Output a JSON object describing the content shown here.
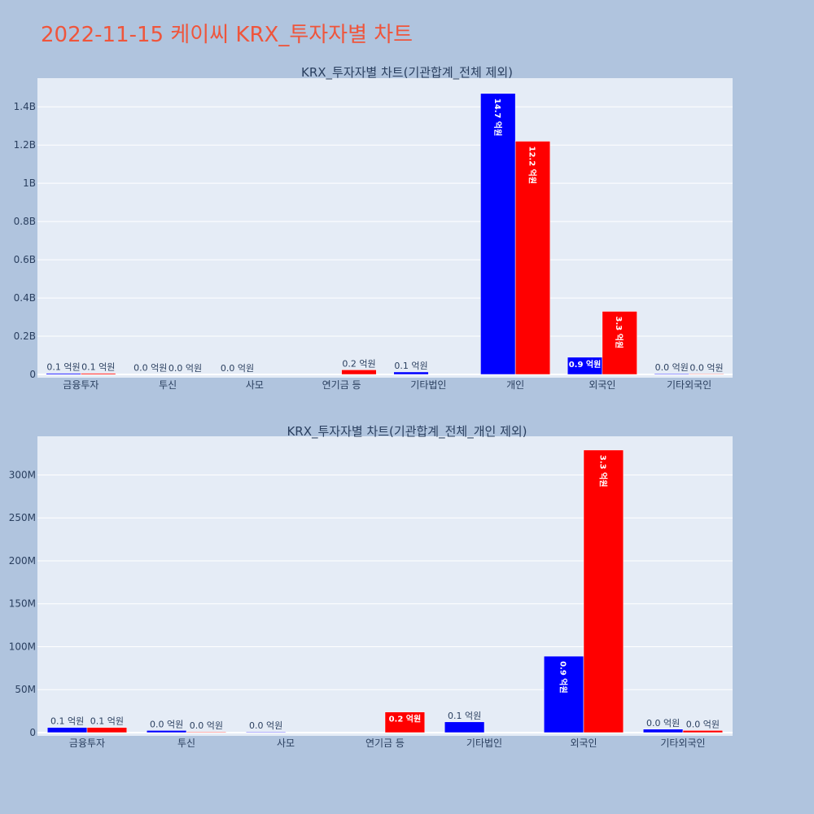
{
  "title": "2022-11-15 케이씨 KRX_투자자별 차트",
  "colors": {
    "background": "#b0c4de",
    "plot_bg": "#e5ecf6",
    "title": "#ef553b",
    "buy": "#0000ff",
    "sell": "#ff0000"
  },
  "chart_data": [
    {
      "type": "bar",
      "title": "KRX_투자자별 차트(기관합계_전체 제외)",
      "categories": [
        "금융투자",
        "투신",
        "사모",
        "연기금 등",
        "기타법인",
        "개인",
        "외국인",
        "기타외국인"
      ],
      "series": [
        {
          "color": "#0000ff",
          "values": [
            6000000,
            2000000,
            1000000,
            0,
            13000000,
            1470000000,
            90000000,
            4000000
          ],
          "labels": [
            "0.1 억원",
            "0.0 억원",
            "0.0 억원",
            "",
            "0.1 억원",
            "14.7 억원",
            "0.9 억원",
            "0.0 억원"
          ]
        },
        {
          "color": "#ff0000",
          "values": [
            6000000,
            1000000,
            0,
            24000000,
            0,
            1220000000,
            330000000,
            3000000
          ],
          "labels": [
            "0.1 억원",
            "0.0 억원",
            "",
            "0.2 억원",
            "",
            "12.2 억원",
            "3.3 억원",
            "0.0 억원"
          ]
        }
      ],
      "yticks": [
        0,
        200000000,
        400000000,
        600000000,
        800000000,
        1000000000,
        1200000000,
        1400000000
      ],
      "ytick_labels": [
        "0",
        "0.2B",
        "0.4B",
        "0.6B",
        "0.8B",
        "1B",
        "1.2B",
        "1.4B"
      ],
      "ylim": [
        0,
        1550000000
      ],
      "grid": true
    },
    {
      "type": "bar",
      "title": "KRX_투자자별 차트(기관합계_전체_개인 제외)",
      "categories": [
        "금융투자",
        "투신",
        "사모",
        "연기금 등",
        "기타법인",
        "외국인",
        "기타외국인"
      ],
      "series": [
        {
          "color": "#0000ff",
          "values": [
            6000000,
            2500000,
            800000,
            0,
            12500000,
            89000000,
            4000000
          ],
          "labels": [
            "0.1 억원",
            "0.0 억원",
            "0.0 억원",
            "",
            "0.1 억원",
            "0.9 억원",
            "0.0 억원"
          ]
        },
        {
          "color": "#ff0000",
          "values": [
            6000000,
            800000,
            0,
            24000000,
            0,
            329000000,
            2500000
          ],
          "labels": [
            "0.1 억원",
            "0.0 억원",
            "",
            "0.2 억원",
            "",
            "3.3 억원",
            "0.0 억원"
          ]
        }
      ],
      "yticks": [
        0,
        50000000,
        100000000,
        150000000,
        200000000,
        250000000,
        300000000
      ],
      "ytick_labels": [
        "0",
        "50M",
        "100M",
        "150M",
        "200M",
        "250M",
        "300M"
      ],
      "ylim": [
        0,
        345000000
      ],
      "grid": true
    }
  ]
}
